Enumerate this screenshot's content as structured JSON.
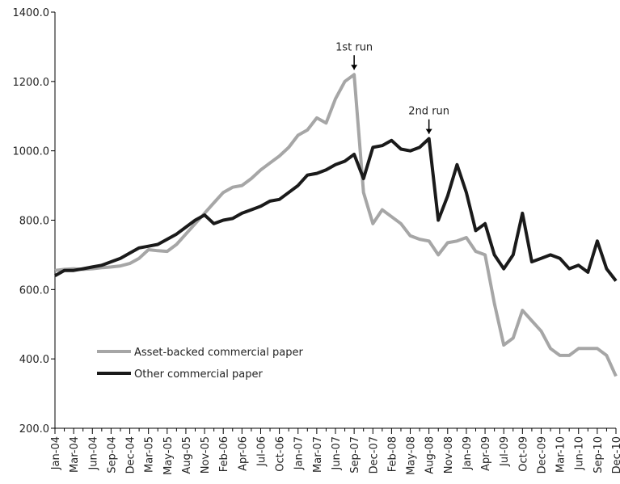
{
  "chart_data": {
    "type": "line",
    "categories": [
      "Jan-04",
      null,
      "Mar-04",
      null,
      "Jun-04",
      null,
      "Sep-04",
      null,
      "Dec-04",
      null,
      "Mar-05",
      null,
      "May-05",
      null,
      "Aug-05",
      null,
      "Nov-05",
      null,
      "Feb-06",
      null,
      "Apr-06",
      null,
      "Jul-06",
      null,
      "Oct-06",
      null,
      "Jan-07",
      null,
      "Mar-07",
      null,
      "Jun-07",
      null,
      "Sep-07",
      null,
      "Dec-07",
      null,
      "Feb-08",
      null,
      "May-08",
      null,
      "Aug-08",
      null,
      "Nov-08",
      null,
      "Jan-09",
      null,
      "Apr-09",
      null,
      "Jul-09",
      null,
      "Oct-09",
      null,
      "Dec-09",
      null,
      "Mar-10",
      null,
      "Jun-10",
      null,
      "Sep-10",
      null,
      "Dec-10"
    ],
    "series": [
      {
        "name": "Asset-backed commercial paper",
        "color": "#a6a6a6",
        "values": [
          655,
          658,
          660,
          658,
          660,
          663,
          665,
          668,
          675,
          690,
          715,
          712,
          710,
          730,
          760,
          790,
          820,
          850,
          880,
          895,
          900,
          920,
          945,
          965,
          985,
          1010,
          1045,
          1060,
          1095,
          1080,
          1150,
          1200,
          1220,
          880,
          790,
          830,
          810,
          790,
          755,
          745,
          740,
          700,
          735,
          740,
          750,
          710,
          700,
          560,
          440,
          460,
          540,
          510,
          480,
          430,
          410,
          410,
          430,
          430,
          430,
          410,
          350
        ]
      },
      {
        "name": "Other commercial paper",
        "color": "#1a1a1a",
        "values": [
          640,
          655,
          655,
          660,
          665,
          670,
          680,
          690,
          705,
          720,
          725,
          730,
          745,
          760,
          780,
          800,
          815,
          790,
          800,
          805,
          820,
          830,
          840,
          855,
          860,
          880,
          900,
          930,
          935,
          945,
          960,
          970,
          990,
          920,
          1010,
          1015,
          1030,
          1005,
          1000,
          1010,
          1035,
          800,
          870,
          960,
          880,
          770,
          790,
          700,
          660,
          700,
          820,
          680,
          690,
          700,
          690,
          660,
          670,
          650,
          740,
          660,
          625
        ]
      }
    ],
    "ylim": [
      200,
      1400
    ],
    "yticks": [
      {
        "value": 200,
        "label": "200.0"
      },
      {
        "value": 400,
        "label": "400.0"
      },
      {
        "value": 600,
        "label": "600.0"
      },
      {
        "value": 800,
        "label": "800.0"
      },
      {
        "value": 1000,
        "label": "1000.0"
      },
      {
        "value": 1200,
        "label": "1200.0"
      },
      {
        "value": 1400,
        "label": "1400.0"
      }
    ],
    "annotations": [
      {
        "text": "1st run",
        "x": "Sep-07"
      },
      {
        "text": "2nd run",
        "x": "Aug-08"
      }
    ],
    "legend": "lower left"
  }
}
